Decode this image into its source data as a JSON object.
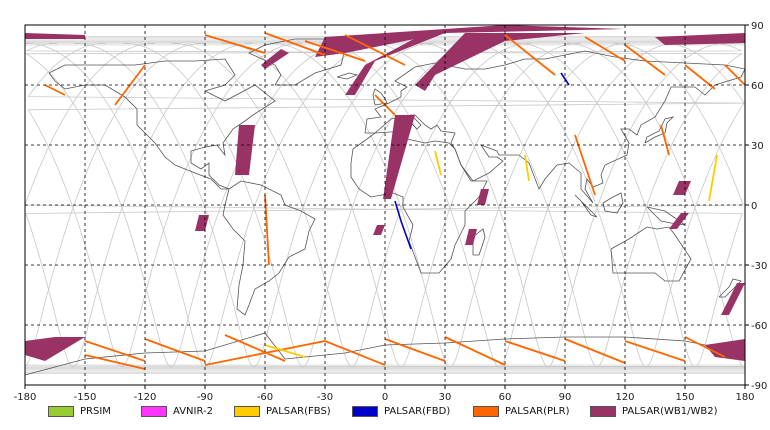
{
  "map": {
    "x_ticks": [
      "-180",
      "-150",
      "-120",
      "-90",
      "-60",
      "-30",
      "0",
      "30",
      "60",
      "90",
      "120",
      "150",
      "180"
    ],
    "y_ticks": [
      "90",
      "60",
      "30",
      "0",
      "-30",
      "-60",
      "-90"
    ],
    "colors": {
      "frame": "#000000",
      "grid": "#000000",
      "orbit": "#c8c8c8",
      "coast": "#555555"
    }
  },
  "legend": {
    "items": [
      {
        "label": "PRSIM",
        "color": "#99cc33"
      },
      {
        "label": "AVNIR-2",
        "color": "#ff33ff"
      },
      {
        "label": "PALSAR(FBS)",
        "color": "#ffcc00"
      },
      {
        "label": "PALSAR(FBD)",
        "color": "#0000cc"
      },
      {
        "label": "PALSAR(PLR)",
        "color": "#ff6600"
      },
      {
        "label": "PALSAR(WB1/WB2)",
        "color": "#993366"
      }
    ]
  },
  "acquisitions": {
    "wb": [
      [
        [
          -180,
          86
        ],
        [
          -150,
          85
        ],
        [
          -150,
          83
        ],
        [
          -180,
          83
        ]
      ],
      [
        [
          -73,
          40
        ],
        [
          -65,
          40
        ],
        [
          -68,
          15
        ],
        [
          -75,
          15
        ]
      ],
      [
        [
          -93,
          -5
        ],
        [
          -88,
          -5
        ],
        [
          -90,
          -13
        ],
        [
          -95,
          -13
        ]
      ],
      [
        [
          -10,
          70
        ],
        [
          20,
          86
        ],
        [
          30,
          86
        ],
        [
          -5,
          72
        ],
        [
          -15,
          55
        ],
        [
          -20,
          55
        ]
      ],
      [
        [
          15,
          60
        ],
        [
          40,
          86
        ],
        [
          100,
          86
        ],
        [
          60,
          82
        ],
        [
          25,
          65
        ],
        [
          20,
          57
        ]
      ],
      [
        [
          -30,
          84
        ],
        [
          60,
          90
        ],
        [
          120,
          88
        ],
        [
          30,
          86
        ],
        [
          -20,
          76
        ],
        [
          -35,
          74
        ]
      ],
      [
        [
          5,
          45
        ],
        [
          15,
          45
        ],
        [
          3,
          3
        ],
        [
          -1,
          3
        ]
      ],
      [
        [
          48,
          8
        ],
        [
          52,
          8
        ],
        [
          50,
          0
        ],
        [
          46,
          0
        ]
      ],
      [
        [
          42,
          -12
        ],
        [
          46,
          -12
        ],
        [
          44,
          -20
        ],
        [
          40,
          -20
        ]
      ],
      [
        [
          147,
          12
        ],
        [
          153,
          12
        ],
        [
          150,
          5
        ],
        [
          144,
          5
        ]
      ],
      [
        [
          148,
          -4
        ],
        [
          152,
          -4
        ],
        [
          146,
          -12
        ],
        [
          142,
          -12
        ]
      ],
      [
        [
          176,
          -39
        ],
        [
          180,
          -39
        ],
        [
          172,
          -55
        ],
        [
          168,
          -55
        ]
      ],
      [
        [
          135,
          84
        ],
        [
          180,
          86
        ],
        [
          180,
          81
        ],
        [
          140,
          80
        ]
      ],
      [
        [
          -180,
          -68
        ],
        [
          -165,
          -66
        ],
        [
          -150,
          -66
        ],
        [
          -170,
          -78
        ],
        [
          -180,
          -75
        ]
      ],
      [
        [
          160,
          -70
        ],
        [
          180,
          -67
        ],
        [
          180,
          -78
        ],
        [
          165,
          -76
        ]
      ],
      [
        [
          -62,
          70
        ],
        [
          -52,
          78
        ],
        [
          -48,
          76
        ],
        [
          -60,
          68
        ]
      ],
      [
        [
          -4,
          -10
        ],
        [
          0,
          -10
        ],
        [
          -2,
          -15
        ],
        [
          -6,
          -15
        ]
      ]
    ],
    "plr": [
      [
        [
          -90,
          85
        ],
        [
          -60,
          76
        ]
      ],
      [
        [
          -60,
          86
        ],
        [
          -30,
          75
        ]
      ],
      [
        [
          -40,
          82
        ],
        [
          -10,
          72
        ]
      ],
      [
        [
          -20,
          85
        ],
        [
          10,
          70
        ]
      ],
      [
        [
          60,
          85
        ],
        [
          85,
          65
        ]
      ],
      [
        [
          100,
          84
        ],
        [
          120,
          72
        ]
      ],
      [
        [
          120,
          80
        ],
        [
          140,
          65
        ]
      ],
      [
        [
          150,
          70
        ],
        [
          165,
          58
        ]
      ],
      [
        [
          170,
          70
        ],
        [
          180,
          60
        ]
      ],
      [
        [
          -120,
          70
        ],
        [
          -135,
          50
        ]
      ],
      [
        [
          -170,
          60
        ],
        [
          -160,
          55
        ]
      ],
      [
        [
          -150,
          -68
        ],
        [
          -120,
          -78
        ]
      ],
      [
        [
          -120,
          -67
        ],
        [
          -90,
          -78
        ]
      ],
      [
        [
          -80,
          -65
        ],
        [
          -50,
          -78
        ]
      ],
      [
        [
          -30,
          -68
        ],
        [
          0,
          -80
        ]
      ],
      [
        [
          0,
          -67
        ],
        [
          30,
          -78
        ]
      ],
      [
        [
          30,
          -66
        ],
        [
          60,
          -80
        ]
      ],
      [
        [
          60,
          -68
        ],
        [
          90,
          -78
        ]
      ],
      [
        [
          90,
          -67
        ],
        [
          120,
          -79
        ]
      ],
      [
        [
          120,
          -68
        ],
        [
          150,
          -78
        ]
      ],
      [
        [
          150,
          -66
        ],
        [
          170,
          -76
        ]
      ],
      [
        [
          95,
          35
        ],
        [
          105,
          5
        ]
      ],
      [
        [
          138,
          40
        ],
        [
          142,
          25
        ]
      ],
      [
        [
          -60,
          5
        ],
        [
          -58,
          -30
        ]
      ],
      [
        [
          -30,
          -68
        ],
        [
          -90,
          -80
        ]
      ],
      [
        [
          -150,
          -75
        ],
        [
          -120,
          -82
        ]
      ],
      [
        [
          -5,
          55
        ],
        [
          5,
          45
        ]
      ]
    ],
    "fbs": [
      [
        [
          25,
          27
        ],
        [
          28,
          15
        ]
      ],
      [
        [
          70,
          25
        ],
        [
          72,
          12
        ]
      ],
      [
        [
          166,
          25
        ],
        [
          162,
          2
        ]
      ],
      [
        [
          -60,
          -70
        ],
        [
          -40,
          -76
        ]
      ]
    ],
    "fbd": [
      [
        [
          5,
          2
        ],
        [
          8,
          -8
        ]
      ],
      [
        [
          8,
          -8
        ],
        [
          13,
          -22
        ]
      ],
      [
        [
          88,
          66
        ],
        [
          92,
          60
        ]
      ]
    ]
  }
}
